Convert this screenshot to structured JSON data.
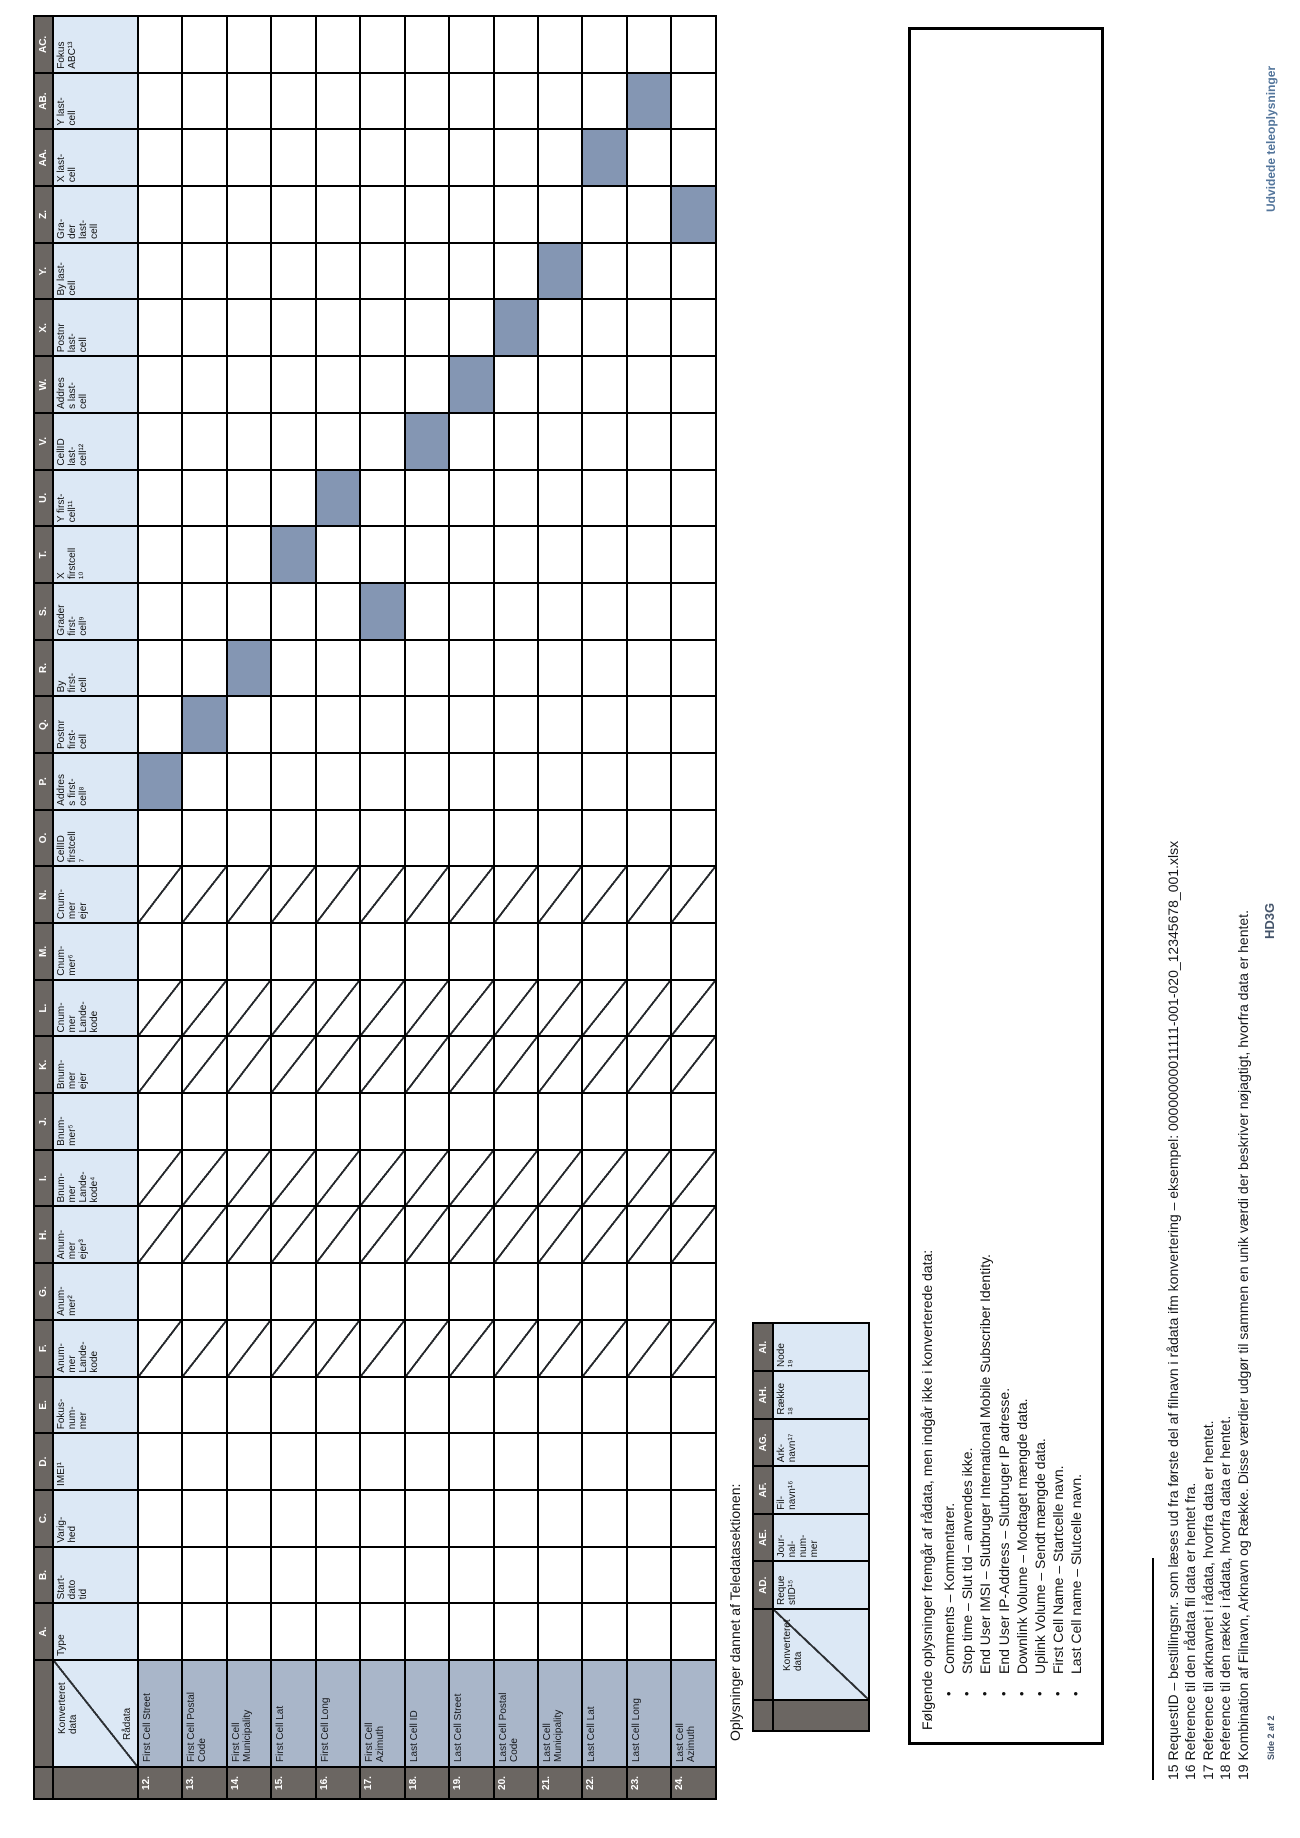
{
  "matrix_table": {
    "corner_top": "Konverteret\ndata",
    "corner_bottom": "Rådata",
    "slash_letters": [
      "F.",
      "H.",
      "I.",
      "K.",
      "L.",
      "N."
    ],
    "columns": [
      {
        "letter": "A.",
        "label": "Type"
      },
      {
        "letter": "B.",
        "label": "Start-\ndato\ntid"
      },
      {
        "letter": "C.",
        "label": "Varig-\nhed"
      },
      {
        "letter": "D.",
        "label": "IMEI¹"
      },
      {
        "letter": "E.",
        "label": "Fokus-\nnum-\nmer"
      },
      {
        "letter": "F.",
        "label": "Anum-\nmer\nLande-\nkode"
      },
      {
        "letter": "G.",
        "label": "Anum-\nmer²"
      },
      {
        "letter": "H.",
        "label": "Anum-\nmer\nejer³"
      },
      {
        "letter": "I.",
        "label": "Bnum-\nmer\nLande-\nkode⁴"
      },
      {
        "letter": "J.",
        "label": "Bnum-\nmer⁵"
      },
      {
        "letter": "K.",
        "label": "Bnum-\nmer\nejer"
      },
      {
        "letter": "L.",
        "label": "Cnum-\nmer\nLande-\nkode"
      },
      {
        "letter": "M.",
        "label": "Cnum-\nmer⁶"
      },
      {
        "letter": "N.",
        "label": "Cnum-\nmer\nejer"
      },
      {
        "letter": "O.",
        "label": "CellID\nfirstcell\n⁷"
      },
      {
        "letter": "P.",
        "label": "Addres\ns first-\ncell⁸"
      },
      {
        "letter": "Q.",
        "label": "Postnr\nfirst-\ncell"
      },
      {
        "letter": "R.",
        "label": "By\nfirst-\ncell"
      },
      {
        "letter": "S.",
        "label": "Grader\nfirst-\ncell⁹"
      },
      {
        "letter": "T.",
        "label": "X\nfirstcell\n¹⁰"
      },
      {
        "letter": "U.",
        "label": "Y first-\ncell¹¹"
      },
      {
        "letter": "V.",
        "label": "CellID\nlast-\ncell¹²"
      },
      {
        "letter": "W.",
        "label": "Addres\ns last-\ncell"
      },
      {
        "letter": "X.",
        "label": "Postnr\nlast-\ncell"
      },
      {
        "letter": "Y.",
        "label": "By last-\ncell"
      },
      {
        "letter": "Z.",
        "label": "Gra-\nder\nlast-\ncell"
      },
      {
        "letter": "AA.",
        "label": "X last-\ncell"
      },
      {
        "letter": "AB.",
        "label": "Y last-\ncell"
      },
      {
        "letter": "AC.",
        "label": "Fokus\nABC¹³"
      }
    ],
    "rows": [
      {
        "num": "12.",
        "label": "First Cell Street",
        "filled": "P."
      },
      {
        "num": "13.",
        "label": "First Cell Postal\nCode",
        "filled": "Q."
      },
      {
        "num": "14.",
        "label": "First Cell\nMunicipality",
        "filled": "R."
      },
      {
        "num": "15.",
        "label": "First Cell Lat",
        "filled": "T."
      },
      {
        "num": "16.",
        "label": "First Cell Long",
        "filled": "U."
      },
      {
        "num": "17.",
        "label": "First Cell\nAzimuth",
        "filled": "S."
      },
      {
        "num": "18.",
        "label": "Last Cell ID",
        "filled": "V."
      },
      {
        "num": "19.",
        "label": "Last Cell Street",
        "filled": "W."
      },
      {
        "num": "20.",
        "label": "Last Cell Postal\nCode",
        "filled": "X."
      },
      {
        "num": "21.",
        "label": "Last Cell\nMunicipality",
        "filled": "Y."
      },
      {
        "num": "22.",
        "label": "Last Cell Lat",
        "filled": "AA."
      },
      {
        "num": "23.",
        "label": "Last Cell Long",
        "filled": "AB."
      },
      {
        "num": "24.",
        "label": "Last Cell\nAzimuth",
        "filled": "Z."
      }
    ]
  },
  "teledata_section": {
    "title": "Oplysninger dannet af Teledatasektionen:",
    "corner_top": "Konverteret\ndata",
    "columns": [
      {
        "letter": "AD.",
        "label": "Reque\nstID¹⁵"
      },
      {
        "letter": "AE.",
        "label": "Jour-\nnal-\nnum-\nmer"
      },
      {
        "letter": "AF.",
        "label": "Fil-\nnavn¹⁶"
      },
      {
        "letter": "AG.",
        "label": "Ark-\nnavn¹⁷"
      },
      {
        "letter": "AH.",
        "label": "Række\n¹⁸"
      },
      {
        "letter": "AI.",
        "label": "Node\n¹⁹"
      }
    ]
  },
  "info_box": {
    "title": "Følgende oplysninger fremgår af rådata, men indgår ikke i konverterede data:",
    "bullets": [
      "Comments – Kommentarer.",
      "Stop time – Slut tid – anvendes ikke.",
      "End User IMSI – Slutbruger International Mobile Subscriber Identity.",
      "End User IP-Address – Slutbruger IP adresse.",
      "Downlink Volume – Modtaget mængde data.",
      "Uplink Volume – Sendt mængde data.",
      "First Cell Name – Startcelle navn.",
      "Last Cell name – Slutcelle navn."
    ]
  },
  "footnotes": [
    "15 RequestID – bestillingsnr. som læses ud fra første del af filnavn i rådata ifm konvertering – eksempel:  00000000011111-001-020_12345678_001.xlsx",
    "16 Reference til den rådata fil data er hentet fra.",
    "17 Reference til arknavnet i rådata, hvorfra data er hentet.",
    "18 Reference til den række i rådata, hvorfra data er hentet.",
    "19 Kombination af Filnavn, Arknavn og Række. Disse værdier udgør til sammen en unik værdi der beskriver nøjagtigt, hvorfra data er hentet."
  ],
  "footer": {
    "left": "Side 2 af 2",
    "center": "HD3G",
    "right": "Udvidede teleoplysninger"
  },
  "colors": {
    "header_fill": "#dce8f5",
    "row_label_fill": "#a9b6c9",
    "marked_cell": "#8496b3",
    "band_fill": "#6b6662",
    "footer_text": "#44546a"
  }
}
